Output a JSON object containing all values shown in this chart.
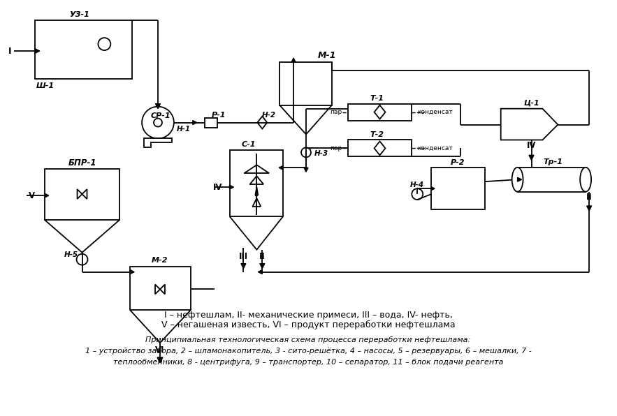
{
  "bg_color": "#ffffff",
  "lc": "#000000",
  "lw": 1.3,
  "legend_line1": "I – нефтешлам, II- механические примеси, III – вода, IV- нефть,",
  "legend_line2": "V – негашеная известь, VI – продукт переработки нефтешлама",
  "caption_line1": "Принципиальная технологическая схема процесса переработки нефтешлама:",
  "caption_line2": "1 – устройство забора, 2 – шламонакопитель, 3 - сито-решётка, 4 – насосы, 5 – резервуары, 6 – мешалки, 7 -",
  "caption_line3": "теплообменники, 8 - центрифуга, 9 – транспортер, 10 – сепаратор, 11 – блок подачи реагента"
}
